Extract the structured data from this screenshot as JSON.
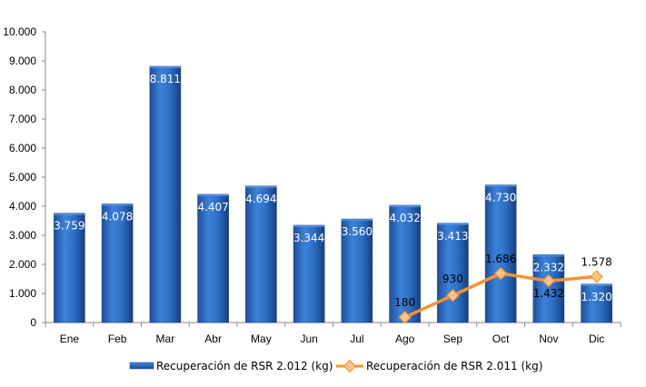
{
  "chart_data": {
    "type": "bar",
    "categories": [
      "Ene",
      "Feb",
      "Mar",
      "Abr",
      "May",
      "Jun",
      "Jul",
      "Ago",
      "Sep",
      "Oct",
      "Nov",
      "Dic"
    ],
    "ylim": [
      0,
      10000
    ],
    "yticks": [
      "0",
      "1.000",
      "2.000",
      "3.000",
      "4.000",
      "5.000",
      "6.000",
      "7.000",
      "8.000",
      "9.000",
      "10.000"
    ],
    "grid": false,
    "legend_position": "bottom",
    "series": [
      {
        "name": "Recuperación de RSR 2.012 (kg)",
        "type": "bar",
        "color": "#2E6FC8",
        "values": [
          3759,
          4078,
          8811,
          4407,
          4694,
          3344,
          3560,
          4032,
          3413,
          4730,
          2332,
          1320
        ],
        "labels": [
          "3.759",
          "4.078",
          "8.811",
          "4.407",
          "4.694",
          "3.344",
          "3.560",
          "4.032",
          "3.413",
          "4.730",
          "2.332",
          "1.320"
        ]
      },
      {
        "name": "Recuperación de RSR 2.011 (kg)",
        "type": "line",
        "color": "#F7922E",
        "values": [
          null,
          null,
          null,
          null,
          null,
          null,
          null,
          180,
          930,
          1686,
          1432,
          1578
        ],
        "labels": [
          "",
          "",
          "",
          "",
          "",
          "",
          "",
          "180",
          "930",
          "1.686",
          "1.432",
          "1.578"
        ]
      }
    ]
  }
}
